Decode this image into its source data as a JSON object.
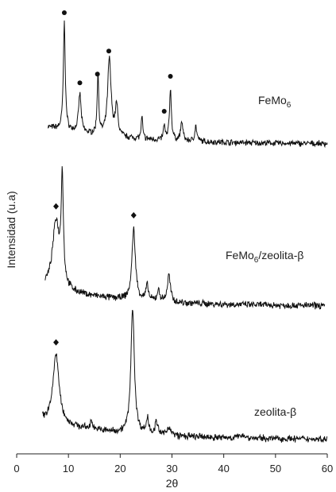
{
  "chart_data": {
    "type": "line",
    "title": "",
    "xlabel": "2θ",
    "ylabel": "Intensidad  (u.a)",
    "xlim": [
      0,
      60
    ],
    "x_ticks": [
      0,
      10,
      20,
      30,
      40,
      50,
      60
    ],
    "grid": false,
    "legend": "none",
    "line_color": "#111111",
    "series": [
      {
        "name": "FeMo₆",
        "label_main": "FeMo",
        "label_sub": "6",
        "x_range": [
          6,
          60
        ],
        "baseline": 0.09,
        "peaks": [
          {
            "x": 9.2,
            "h": 1.0,
            "w": 0.22
          },
          {
            "x": 12.2,
            "h": 0.36,
            "w": 0.3
          },
          {
            "x": 15.7,
            "h": 0.58,
            "w": 0.18
          },
          {
            "x": 17.9,
            "h": 0.72,
            "w": 0.4
          },
          {
            "x": 19.3,
            "h": 0.28,
            "w": 0.3
          },
          {
            "x": 24.2,
            "h": 0.2,
            "w": 0.18
          },
          {
            "x": 28.5,
            "h": 0.14,
            "w": 0.18
          },
          {
            "x": 29.7,
            "h": 0.48,
            "w": 0.22
          },
          {
            "x": 31.9,
            "h": 0.18,
            "w": 0.25
          },
          {
            "x": 34.6,
            "h": 0.14,
            "w": 0.25
          }
        ],
        "markers": [
          {
            "x": 9.2,
            "symbol": "circle"
          },
          {
            "x": 12.2,
            "symbol": "circle"
          },
          {
            "x": 15.6,
            "symbol": "circle"
          },
          {
            "x": 17.8,
            "symbol": "circle"
          },
          {
            "x": 28.5,
            "symbol": "circle"
          },
          {
            "x": 29.7,
            "symbol": "circle"
          }
        ]
      },
      {
        "name": "FeMo₆/zeolita-β",
        "label_main": "FeMo",
        "label_sub": "6",
        "label_rest": "/zeolita-β",
        "x_range": [
          5.5,
          59.5
        ],
        "baseline": 0.08,
        "peaks": [
          {
            "x": 7.6,
            "h": 0.55,
            "w": 0.8
          },
          {
            "x": 8.8,
            "h": 0.85,
            "w": 0.25
          },
          {
            "x": 22.6,
            "h": 0.58,
            "w": 0.4
          },
          {
            "x": 25.2,
            "h": 0.12,
            "w": 0.3
          },
          {
            "x": 27.4,
            "h": 0.09,
            "w": 0.3
          },
          {
            "x": 29.4,
            "h": 0.22,
            "w": 0.35
          }
        ],
        "markers": [
          {
            "x": 7.6,
            "symbol": "diamond"
          },
          {
            "x": 22.6,
            "symbol": "diamond"
          }
        ]
      },
      {
        "name": "zeolita-β",
        "label_main": "zeolita-β",
        "x_range": [
          5,
          60
        ],
        "baseline": 0.08,
        "peaks": [
          {
            "x": 7.6,
            "h": 0.55,
            "w": 0.7
          },
          {
            "x": 14.5,
            "h": 0.06,
            "w": 0.3
          },
          {
            "x": 22.4,
            "h": 1.0,
            "w": 0.4
          },
          {
            "x": 25.3,
            "h": 0.12,
            "w": 0.3
          },
          {
            "x": 27.0,
            "h": 0.1,
            "w": 0.3
          },
          {
            "x": 29.4,
            "h": 0.07,
            "w": 0.4
          },
          {
            "x": 43.6,
            "h": 0.03,
            "w": 0.5
          }
        ],
        "markers": [
          {
            "x": 7.6,
            "symbol": "diamond"
          }
        ]
      }
    ]
  }
}
